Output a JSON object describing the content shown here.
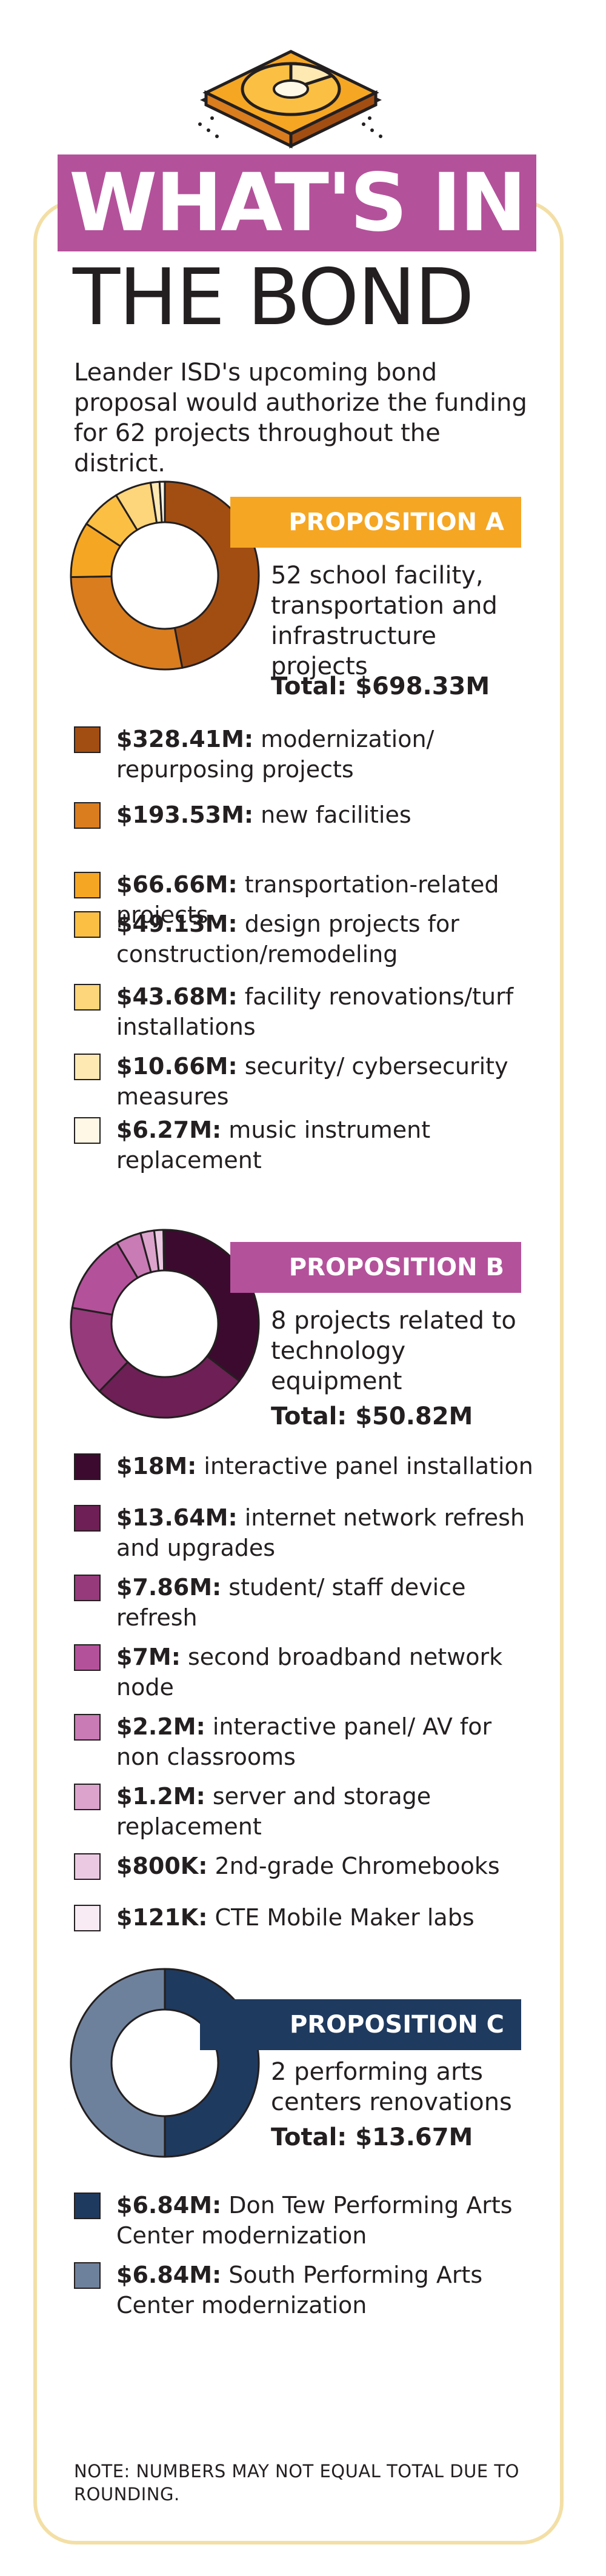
{
  "header": {
    "title_line1": "WHAT'S IN",
    "title_line2": "THE BOND",
    "intro": "Leander ISD's upcoming bond proposal would authorize the funding for 62 projects throughout the district.",
    "icon": "pie-chart-icon",
    "accent": "#b4519b"
  },
  "propositions": [
    {
      "label": "PROPOSITION A",
      "banner_color": "#f5a623",
      "description": "52 school facility, transportation and infrastructure projects",
      "total": "Total: $698.33M",
      "items": [
        {
          "amount": "$328.41M:",
          "text": "modernization/ repurposing projects",
          "color": "#a24e12"
        },
        {
          "amount": "$193.53M:",
          "text": "new facilities",
          "color": "#d97d1f"
        },
        {
          "amount": "$66.66M:",
          "text": "transportation-related projects",
          "color": "#f5a623"
        },
        {
          "amount": "$49.13M:",
          "text": "design projects for construction/remodeling",
          "color": "#fbbf43"
        },
        {
          "amount": "$43.68M:",
          "text": "facility renovations/turf installations",
          "color": "#fdd57a"
        },
        {
          "amount": "$10.66M:",
          "text": "security/ cybersecurity measures",
          "color": "#fee9b3"
        },
        {
          "amount": "$6.27M:",
          "text": "music instrument replacement",
          "color": "#fff8e6"
        }
      ]
    },
    {
      "label": "PROPOSITION B",
      "banner_color": "#b4519b",
      "description": "8 projects related to technology equipment",
      "total": "Total: $50.82M",
      "items": [
        {
          "amount": "$18M:",
          "text": "interactive panel installation",
          "color": "#3d0a2f"
        },
        {
          "amount": "$13.64M:",
          "text": "internet network refresh and upgrades",
          "color": "#6e1f55"
        },
        {
          "amount": "$7.86M:",
          "text": "student/ staff device refresh",
          "color": "#963a7c"
        },
        {
          "amount": "$7M:",
          "text": "second broadband network node",
          "color": "#b4519b"
        },
        {
          "amount": "$2.2M:",
          "text": "interactive panel/ AV for non classrooms",
          "color": "#c97bb5"
        },
        {
          "amount": "$1.2M:",
          "text": "server and storage replacement",
          "color": "#dca4cd"
        },
        {
          "amount": "$800K:",
          "text": "2nd-grade Chromebooks",
          "color": "#ecc9e2"
        },
        {
          "amount": "$121K:",
          "text": "CTE Mobile Maker labs",
          "color": "#f9ebf4"
        }
      ]
    },
    {
      "label": "PROPOSITION C",
      "banner_color": "#1f3a5f",
      "description": "2 performing arts centers renovations",
      "total": "Total: $13.67M",
      "items": [
        {
          "amount": "$6.84M:",
          "text": "Don Tew Performing Arts Center modernization",
          "color": "#1f3a5f"
        },
        {
          "amount": "$6.84M:",
          "text": "South Performing Arts Center modernization",
          "color": "#6e819c"
        }
      ]
    }
  ],
  "note": "NOTE: NUMBERS MAY NOT EQUAL TOTAL DUE TO ROUNDING.",
  "chart_data": [
    {
      "type": "pie",
      "categories": [
        "modernization/ repurposing projects",
        "new facilities",
        "transportation-related projects",
        "design projects for construction/remodeling",
        "facility renovations/turf installations",
        "security/ cybersecurity measures",
        "music instrument replacement"
      ],
      "values": [
        328.41,
        193.53,
        66.66,
        49.13,
        43.68,
        10.66,
        6.27
      ],
      "colors": [
        "#a24e12",
        "#d97d1f",
        "#f5a623",
        "#fbbf43",
        "#fdd57a",
        "#fee9b3",
        "#fff8e6"
      ]
    },
    {
      "type": "pie",
      "categories": [
        "interactive panel installation",
        "internet network refresh and upgrades",
        "student/ staff device refresh",
        "second broadband network node",
        "interactive panel/ AV for non classrooms",
        "server and storage replacement",
        "2nd-grade Chromebooks",
        "CTE Mobile Maker labs"
      ],
      "values": [
        18,
        13.64,
        7.86,
        7,
        2.2,
        1.2,
        0.8,
        0.121
      ],
      "colors": [
        "#3d0a2f",
        "#6e1f55",
        "#963a7c",
        "#b4519b",
        "#c97bb5",
        "#dca4cd",
        "#ecc9e2",
        "#f9ebf4"
      ]
    },
    {
      "type": "pie",
      "categories": [
        "Don Tew Performing Arts Center modernization",
        "South Performing Arts Center modernization"
      ],
      "values": [
        6.84,
        6.84
      ],
      "colors": [
        "#1f3a5f",
        "#6e819c"
      ]
    }
  ]
}
